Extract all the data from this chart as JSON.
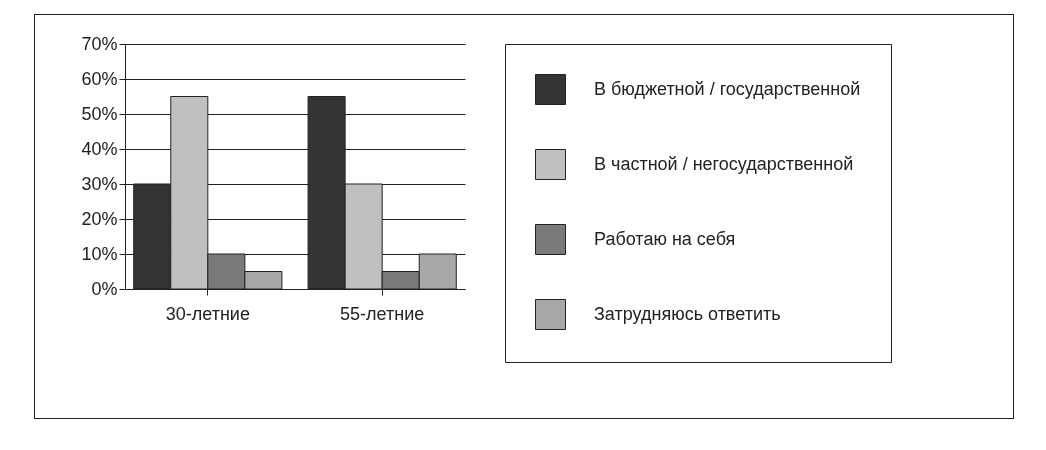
{
  "chart_data": {
    "type": "bar",
    "categories": [
      "30-летние",
      "55-летние"
    ],
    "series": [
      {
        "name": "В бюджетной / государственной",
        "color": "#333333",
        "values": [
          30,
          55
        ]
      },
      {
        "name": "В частной / негосударственной",
        "color": "#c0c0c0",
        "values": [
          55,
          30
        ]
      },
      {
        "name": "Работаю на себя",
        "color": "#7a7a7a",
        "values": [
          10,
          5
        ]
      },
      {
        "name": "Затрудняюсь ответить",
        "color": "#a8a8a8",
        "values": [
          5,
          10
        ]
      }
    ],
    "ylim": [
      0,
      70
    ],
    "yticks": [
      {
        "value": 0,
        "label": "0%"
      },
      {
        "value": 10,
        "label": "10%"
      },
      {
        "value": 20,
        "label": "20%"
      },
      {
        "value": 30,
        "label": "30%"
      },
      {
        "value": 40,
        "label": "40%"
      },
      {
        "value": 50,
        "label": "50%"
      },
      {
        "value": 60,
        "label": "60%"
      },
      {
        "value": 70,
        "label": "70%"
      }
    ],
    "grid": "y",
    "legend": "right"
  }
}
